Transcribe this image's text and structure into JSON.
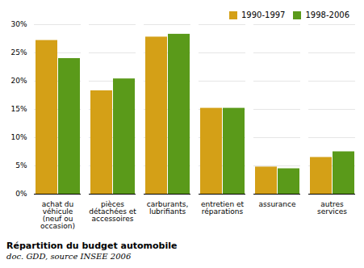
{
  "chart_data": {
    "type": "bar",
    "title": "Répartition du budget automobile",
    "subtitle": "doc. GDD, source INSEE 2006",
    "categories": [
      "achat du\nvéhicule\n(neuf ou\noccasion)",
      "pièces\ndétachées et\naccessoires",
      "carburants,\nlubrifiants",
      "entretien et\nréparations",
      "assurance",
      "autres\nservices"
    ],
    "series": [
      {
        "name": "1990-1997",
        "color": "#D4A017",
        "values": [
          27.2,
          18.3,
          27.8,
          15.2,
          4.8,
          6.5
        ]
      },
      {
        "name": "1998-2006",
        "color": "#5A9A1A",
        "values": [
          24.0,
          20.4,
          28.3,
          15.2,
          4.5,
          7.5
        ]
      }
    ],
    "ylim": [
      0,
      30
    ],
    "yticks": [
      {
        "value": 0,
        "label": "0%"
      },
      {
        "value": 5,
        "label": "5%"
      },
      {
        "value": 10,
        "label": "10%"
      },
      {
        "value": 15,
        "label": "15%"
      },
      {
        "value": 20,
        "label": "20%"
      },
      {
        "value": 25,
        "label": "25%"
      },
      {
        "value": 30,
        "label": "30%"
      }
    ],
    "grid": true,
    "legend": "upper right"
  }
}
